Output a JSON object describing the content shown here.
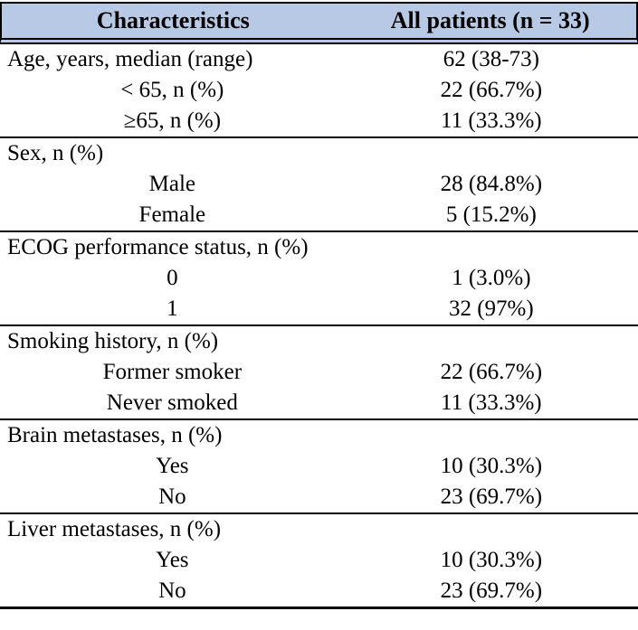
{
  "table": {
    "title_row": {
      "col1": "Characteristics",
      "col2": "All patients (n = 33)"
    },
    "colors": {
      "header_background": "#b8c9e5",
      "rule_color": "#000000",
      "text_color": "#000000"
    },
    "sections": [
      {
        "rows": [
          {
            "label": "Age, years, median (range)",
            "value": "62 (38-73)"
          },
          {
            "label": "< 65, n (%)",
            "value": "22 (66.7%)"
          },
          {
            "label": "≥65, n (%)",
            "value": "11 (33.3%)"
          }
        ]
      },
      {
        "rows": [
          {
            "label": "Sex, n (%)",
            "value": ""
          },
          {
            "label": "Male",
            "value": "28 (84.8%)"
          },
          {
            "label": "Female",
            "value": "5 (15.2%)"
          }
        ]
      },
      {
        "rows": [
          {
            "label": "ECOG performance status, n (%)",
            "value": ""
          },
          {
            "label": "0",
            "value": "1 (3.0%)"
          },
          {
            "label": "1",
            "value": "32 (97%)"
          }
        ]
      },
      {
        "rows": [
          {
            "label": "Smoking history, n (%)",
            "value": ""
          },
          {
            "label": "Former smoker",
            "value": "22 (66.7%)"
          },
          {
            "label": "Never smoked",
            "value": "11 (33.3%)"
          }
        ]
      },
      {
        "rows": [
          {
            "label": "Brain metastases, n (%)",
            "value": ""
          },
          {
            "label": "Yes",
            "value": "10 (30.3%)"
          },
          {
            "label": "No",
            "value": "23 (69.7%)"
          }
        ]
      },
      {
        "rows": [
          {
            "label": "Liver metastases, n (%)",
            "value": ""
          },
          {
            "label": "Yes",
            "value": "10 (30.3%)"
          },
          {
            "label": "No",
            "value": "23 (69.7%)"
          }
        ]
      }
    ]
  }
}
